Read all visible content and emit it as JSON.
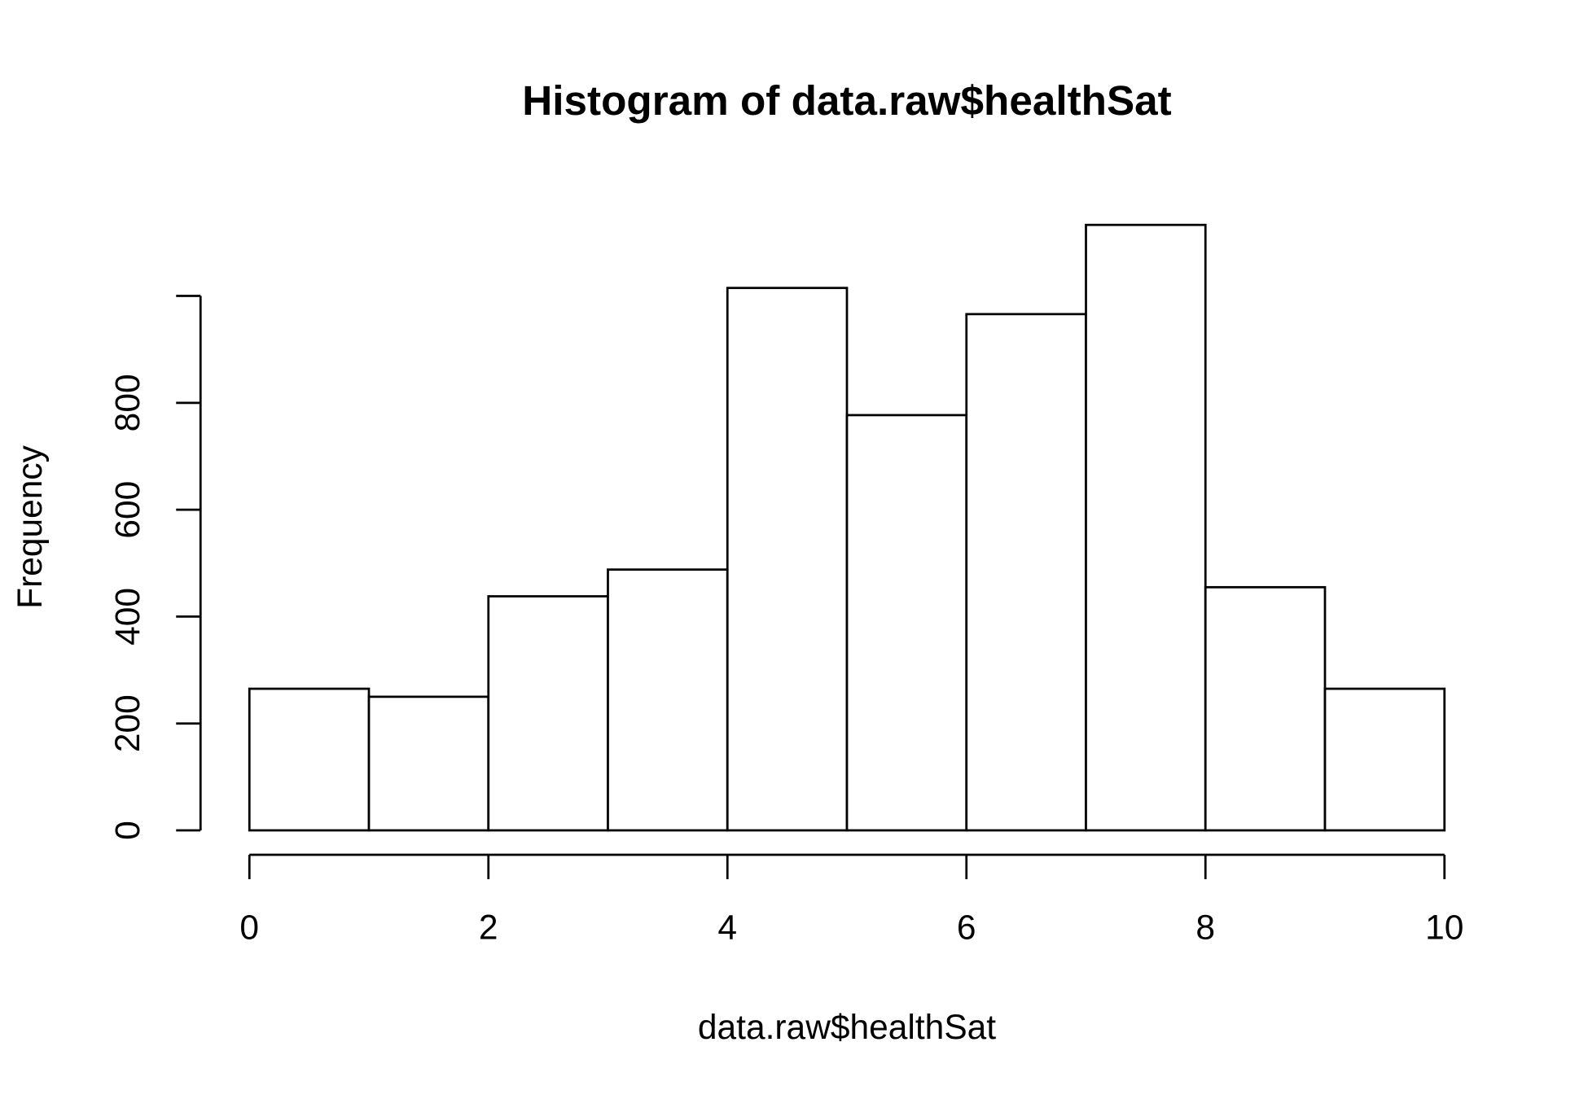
{
  "chart_data": {
    "type": "histogram",
    "title": "Histogram of data.raw$healthSat",
    "xlabel": "data.raw$healthSat",
    "ylabel": "Frequency",
    "bins": [
      0,
      1,
      2,
      3,
      4,
      5,
      6,
      7,
      8,
      9,
      10
    ],
    "counts": [
      265,
      250,
      438,
      488,
      1015,
      777,
      966,
      1133,
      455,
      265
    ],
    "color": "#ffffff",
    "edgecolor": "#000000",
    "xlim": [
      0,
      10
    ],
    "xticks": [
      0,
      2,
      4,
      6,
      8,
      10
    ],
    "ylim": [
      0,
      1133
    ],
    "yticks": [
      0,
      200,
      400,
      600,
      800,
      {
        "value": 1000,
        "label": null
      }
    ],
    "grid": false
  }
}
